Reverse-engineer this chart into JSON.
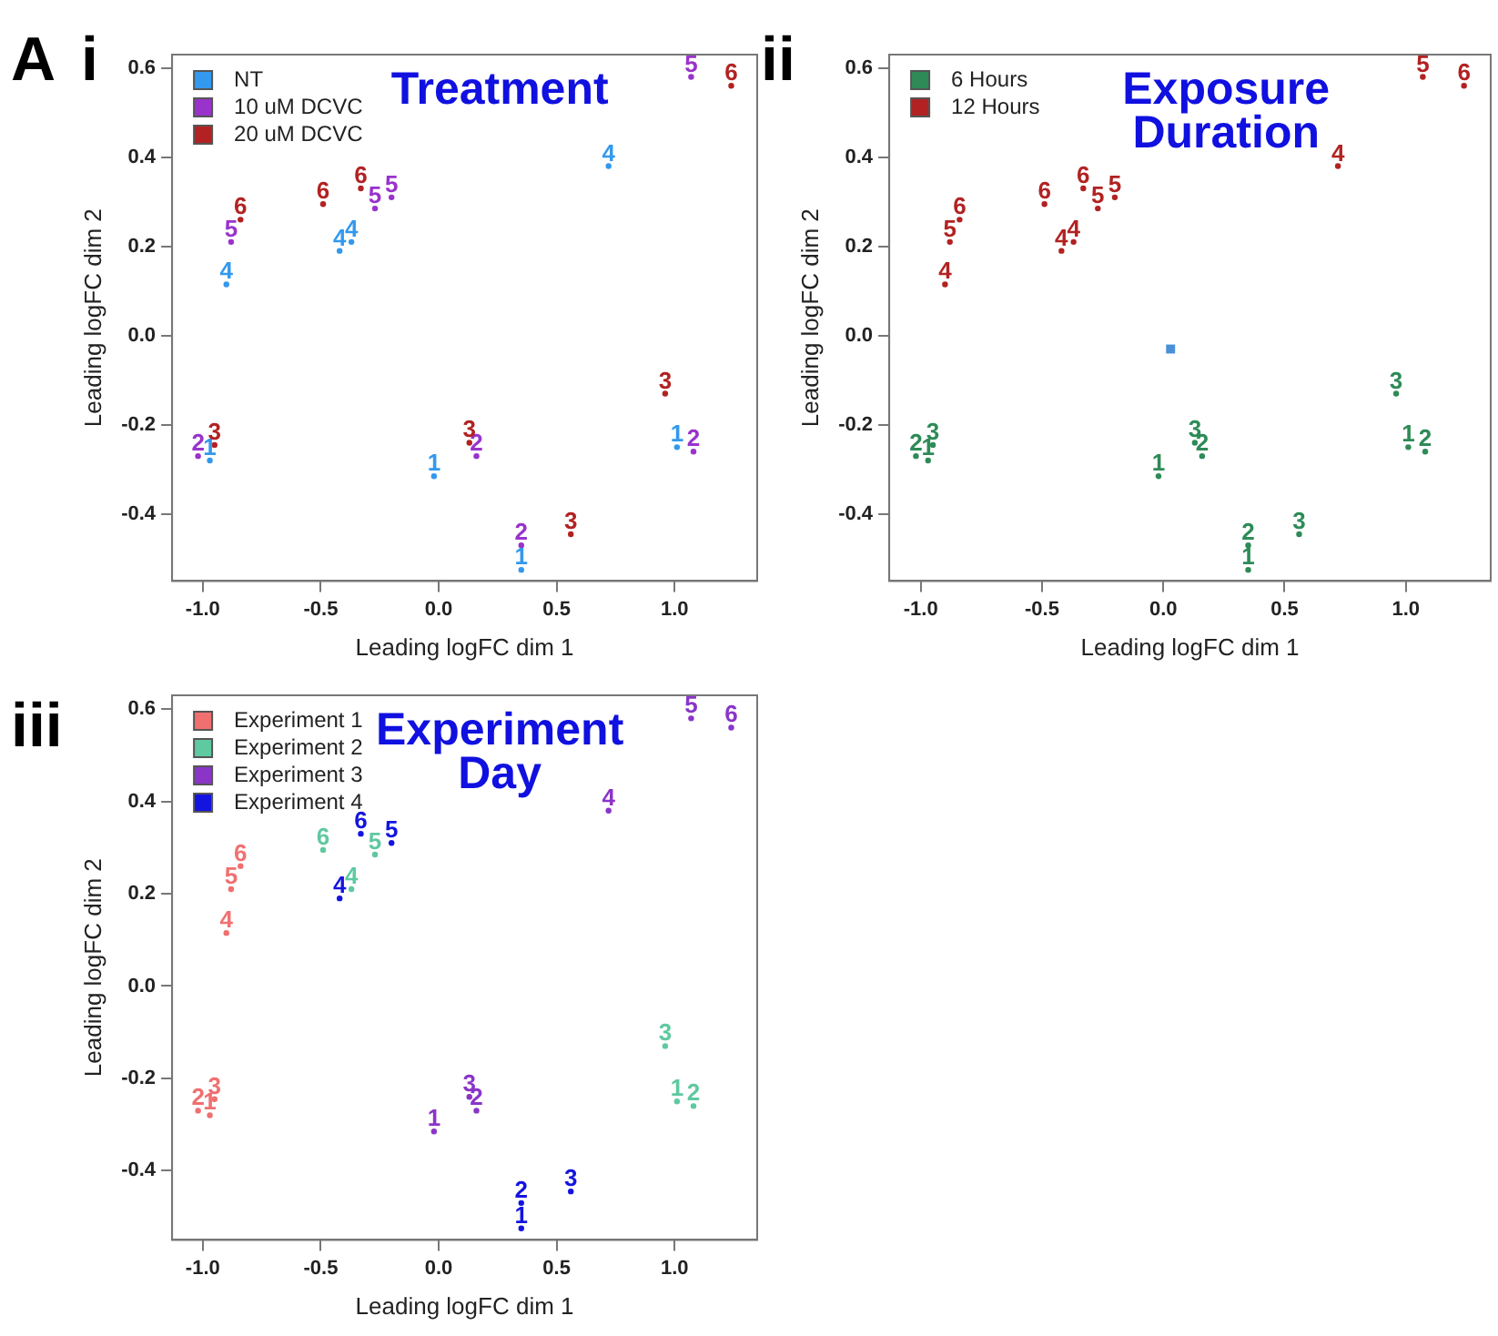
{
  "chart_data": [
    {
      "type": "scatter",
      "title": "Treatment",
      "xlabel": "Leading logFC dim 1",
      "ylabel": "Leading logFC dim 2",
      "xlim": [
        -1.13,
        1.35
      ],
      "ylim": [
        -0.55,
        0.63
      ],
      "xticks": [
        {
          "value": -1,
          "label": "-1.0"
        },
        {
          "value": -0.5,
          "label": "-0.5"
        },
        {
          "value": 0,
          "label": "0.0"
        },
        {
          "value": 0.5,
          "label": "0.5"
        },
        {
          "value": 1,
          "label": "1.0"
        }
      ],
      "yticks": [
        {
          "value": -0.4,
          "label": "-0.4"
        },
        {
          "value": -0.2,
          "label": "-0.2"
        },
        {
          "value": 0,
          "label": "0.0"
        },
        {
          "value": 0.2,
          "label": "0.2"
        },
        {
          "value": 0.4,
          "label": "0.4"
        },
        {
          "value": 0.6,
          "label": "0.6"
        }
      ],
      "legend": "top left",
      "marker": "circle",
      "series": [
        {
          "name": "NT",
          "color": "#3399ee",
          "x": [
            0.72,
            -0.42,
            -0.37,
            -0.9,
            1.01,
            -0.02,
            0.35,
            -0.97
          ],
          "values": [
            0.38,
            0.19,
            0.21,
            0.115,
            -0.25,
            -0.315,
            -0.525,
            -0.28
          ]
        },
        {
          "name": "10 uM DCVC",
          "color": "#9933cc",
          "x": [
            1.07,
            -0.27,
            -0.2,
            -0.88,
            -1.02,
            0.16,
            1.08,
            0.35
          ],
          "values": [
            0.58,
            0.285,
            0.31,
            0.21,
            -0.27,
            -0.27,
            -0.26,
            -0.47
          ]
        },
        {
          "name": "20 uM DCVC",
          "color": "#b22222",
          "x": [
            1.24,
            -0.49,
            -0.33,
            -0.84,
            -0.95,
            0.13,
            0.96,
            0.56
          ],
          "values": [
            0.56,
            0.295,
            0.33,
            0.26,
            -0.245,
            -0.24,
            -0.13,
            -0.445
          ]
        }
      ],
      "annotations": [
        "A",
        "i",
        {
          "text": "4",
          "x": 0.72,
          "y": 0.38
        },
        {
          "text": "4",
          "x": -0.42,
          "y": 0.19
        },
        {
          "text": "4",
          "x": -0.37,
          "y": 0.21
        },
        {
          "text": "4",
          "x": -0.9,
          "y": 0.115
        },
        {
          "text": "1",
          "x": 1.01,
          "y": -0.25
        },
        {
          "text": "1",
          "x": -0.02,
          "y": -0.315
        },
        {
          "text": "1",
          "x": 0.35,
          "y": -0.525
        },
        {
          "text": "1",
          "x": -0.97,
          "y": -0.28
        },
        {
          "text": "5",
          "x": 1.07,
          "y": 0.58
        },
        {
          "text": "5",
          "x": -0.27,
          "y": 0.285
        },
        {
          "text": "5",
          "x": -0.2,
          "y": 0.31
        },
        {
          "text": "5",
          "x": -0.88,
          "y": 0.21
        },
        {
          "text": "2",
          "x": -1.02,
          "y": -0.27
        },
        {
          "text": "2",
          "x": 0.16,
          "y": -0.27
        },
        {
          "text": "2",
          "x": 1.08,
          "y": -0.26
        },
        {
          "text": "2",
          "x": 0.35,
          "y": -0.47
        },
        {
          "text": "6",
          "x": 1.24,
          "y": 0.56
        },
        {
          "text": "6",
          "x": -0.49,
          "y": 0.295
        },
        {
          "text": "6",
          "x": -0.33,
          "y": 0.33
        },
        {
          "text": "6",
          "x": -0.84,
          "y": 0.26
        },
        {
          "text": "3",
          "x": -0.95,
          "y": -0.245
        },
        {
          "text": "3",
          "x": 0.13,
          "y": -0.24
        },
        {
          "text": "3",
          "x": 0.96,
          "y": -0.13
        },
        {
          "text": "3",
          "x": 0.56,
          "y": -0.445
        }
      ]
    },
    {
      "type": "scatter",
      "title": "Exposure Duration",
      "xlabel": "Leading logFC dim 1",
      "ylabel": "Leading logFC dim 2",
      "xlim": [
        -1.13,
        1.35
      ],
      "ylim": [
        -0.55,
        0.63
      ],
      "xticks": [
        {
          "value": -1,
          "label": "-1.0"
        },
        {
          "value": -0.5,
          "label": "-0.5"
        },
        {
          "value": 0,
          "label": "0.0"
        },
        {
          "value": 0.5,
          "label": "0.5"
        },
        {
          "value": 1,
          "label": "1.0"
        }
      ],
      "yticks": [
        {
          "value": -0.4,
          "label": "-0.4"
        },
        {
          "value": -0.2,
          "label": "-0.2"
        },
        {
          "value": 0,
          "label": "0.0"
        },
        {
          "value": 0.2,
          "label": "0.2"
        },
        {
          "value": 0.4,
          "label": "0.4"
        },
        {
          "value": 0.6,
          "label": "0.6"
        }
      ],
      "legend": "top left",
      "marker": "circle",
      "series": [
        {
          "name": "6 Hours",
          "color": "#2e8b57",
          "x": [
            -0.97,
            -1.02,
            -0.95,
            -0.02,
            0.16,
            0.13,
            1.01,
            1.08,
            0.96,
            0.35,
            0.35,
            0.56
          ],
          "values": [
            -0.28,
            -0.27,
            -0.245,
            -0.315,
            -0.27,
            -0.24,
            -0.25,
            -0.26,
            -0.13,
            -0.525,
            -0.47,
            -0.445
          ]
        },
        {
          "name": "12 Hours",
          "color": "#b22222",
          "x": [
            0.72,
            -0.42,
            -0.37,
            -0.9,
            1.07,
            -0.27,
            -0.2,
            -0.88,
            1.24,
            -0.49,
            -0.33,
            -0.84
          ],
          "values": [
            0.38,
            0.19,
            0.21,
            0.115,
            0.58,
            0.285,
            0.31,
            0.21,
            0.56,
            0.295,
            0.33,
            0.26
          ]
        },
        {
          "color": "#4a90d9",
          "marker": "square",
          "x": [
            0.03
          ],
          "values": [
            -0.03
          ]
        }
      ],
      "annotations": [
        "ii",
        {
          "text": "1",
          "x": -0.97,
          "y": -0.28
        },
        {
          "text": "2",
          "x": -1.02,
          "y": -0.27
        },
        {
          "text": "3",
          "x": -0.95,
          "y": -0.245
        },
        {
          "text": "1",
          "x": -0.02,
          "y": -0.315
        },
        {
          "text": "2",
          "x": 0.16,
          "y": -0.27
        },
        {
          "text": "3",
          "x": 0.13,
          "y": -0.24
        },
        {
          "text": "1",
          "x": 1.01,
          "y": -0.25
        },
        {
          "text": "2",
          "x": 1.08,
          "y": -0.26
        },
        {
          "text": "3",
          "x": 0.96,
          "y": -0.13
        },
        {
          "text": "1",
          "x": 0.35,
          "y": -0.525
        },
        {
          "text": "2",
          "x": 0.35,
          "y": -0.47
        },
        {
          "text": "3",
          "x": 0.56,
          "y": -0.445
        },
        {
          "text": "4",
          "x": 0.72,
          "y": 0.38
        },
        {
          "text": "4",
          "x": -0.42,
          "y": 0.19
        },
        {
          "text": "4",
          "x": -0.37,
          "y": 0.21
        },
        {
          "text": "4",
          "x": -0.9,
          "y": 0.115
        },
        {
          "text": "5",
          "x": 1.07,
          "y": 0.58
        },
        {
          "text": "5",
          "x": -0.27,
          "y": 0.285
        },
        {
          "text": "5",
          "x": -0.2,
          "y": 0.31
        },
        {
          "text": "5",
          "x": -0.88,
          "y": 0.21
        },
        {
          "text": "6",
          "x": 1.24,
          "y": 0.56
        },
        {
          "text": "6",
          "x": -0.49,
          "y": 0.295
        },
        {
          "text": "6",
          "x": -0.33,
          "y": 0.33
        },
        {
          "text": "6",
          "x": -0.84,
          "y": 0.26
        }
      ]
    },
    {
      "type": "scatter",
      "title": "Experiment Day",
      "xlabel": "Leading logFC dim 1",
      "ylabel": "Leading logFC dim 2",
      "xlim": [
        -1.13,
        1.35
      ],
      "ylim": [
        -0.55,
        0.63
      ],
      "xticks": [
        {
          "value": -1,
          "label": "-1.0"
        },
        {
          "value": -0.5,
          "label": "-0.5"
        },
        {
          "value": 0,
          "label": "0.0"
        },
        {
          "value": 0.5,
          "label": "0.5"
        },
        {
          "value": 1,
          "label": "1.0"
        }
      ],
      "yticks": [
        {
          "value": -0.4,
          "label": "-0.4"
        },
        {
          "value": -0.2,
          "label": "-0.2"
        },
        {
          "value": 0,
          "label": "0.0"
        },
        {
          "value": 0.2,
          "label": "0.2"
        },
        {
          "value": 0.4,
          "label": "0.4"
        },
        {
          "value": 0.6,
          "label": "0.6"
        }
      ],
      "legend": "top left",
      "marker": "circle",
      "series": [
        {
          "name": "Experiment 1",
          "color": "#f07070",
          "x": [
            -0.9,
            -0.88,
            -0.84,
            -0.97,
            -1.02,
            -0.95
          ],
          "values": [
            0.115,
            0.21,
            0.26,
            -0.28,
            -0.27,
            -0.245
          ]
        },
        {
          "name": "Experiment 2",
          "color": "#5fc9a0",
          "x": [
            -0.37,
            -0.27,
            -0.49,
            1.01,
            1.08,
            0.96
          ],
          "values": [
            0.21,
            0.285,
            0.295,
            -0.25,
            -0.26,
            -0.13
          ]
        },
        {
          "name": "Experiment 3",
          "color": "#8a35c8",
          "x": [
            0.72,
            1.07,
            1.24,
            -0.02,
            0.16,
            0.13
          ],
          "values": [
            0.38,
            0.58,
            0.56,
            -0.315,
            -0.27,
            -0.24
          ]
        },
        {
          "name": "Experiment 4",
          "color": "#1414e0",
          "x": [
            -0.42,
            -0.2,
            -0.33,
            0.35,
            0.35,
            0.56
          ],
          "values": [
            0.19,
            0.31,
            0.33,
            -0.525,
            -0.47,
            -0.445
          ]
        }
      ],
      "annotations": [
        "iii",
        {
          "text": "4",
          "x": -0.9,
          "y": 0.115
        },
        {
          "text": "5",
          "x": -0.88,
          "y": 0.21
        },
        {
          "text": "6",
          "x": -0.84,
          "y": 0.26
        },
        {
          "text": "1",
          "x": -0.97,
          "y": -0.28
        },
        {
          "text": "2",
          "x": -1.02,
          "y": -0.27
        },
        {
          "text": "3",
          "x": -0.95,
          "y": -0.245
        },
        {
          "text": "4",
          "x": -0.37,
          "y": 0.21
        },
        {
          "text": "5",
          "x": -0.27,
          "y": 0.285
        },
        {
          "text": "6",
          "x": -0.49,
          "y": 0.295
        },
        {
          "text": "1",
          "x": 1.01,
          "y": -0.25
        },
        {
          "text": "2",
          "x": 1.08,
          "y": -0.26
        },
        {
          "text": "3",
          "x": 0.96,
          "y": -0.13
        },
        {
          "text": "4",
          "x": 0.72,
          "y": 0.38
        },
        {
          "text": "5",
          "x": 1.07,
          "y": 0.58
        },
        {
          "text": "6",
          "x": 1.24,
          "y": 0.56
        },
        {
          "text": "1",
          "x": -0.02,
          "y": -0.315
        },
        {
          "text": "2",
          "x": 0.16,
          "y": -0.27
        },
        {
          "text": "3",
          "x": 0.13,
          "y": -0.24
        },
        {
          "text": "4",
          "x": -0.42,
          "y": 0.19
        },
        {
          "text": "5",
          "x": -0.2,
          "y": 0.31
        },
        {
          "text": "6",
          "x": -0.33,
          "y": 0.33
        },
        {
          "text": "1",
          "x": 0.35,
          "y": -0.525
        },
        {
          "text": "2",
          "x": 0.35,
          "y": -0.47
        },
        {
          "text": "3",
          "x": 0.56,
          "y": -0.445
        }
      ]
    }
  ]
}
